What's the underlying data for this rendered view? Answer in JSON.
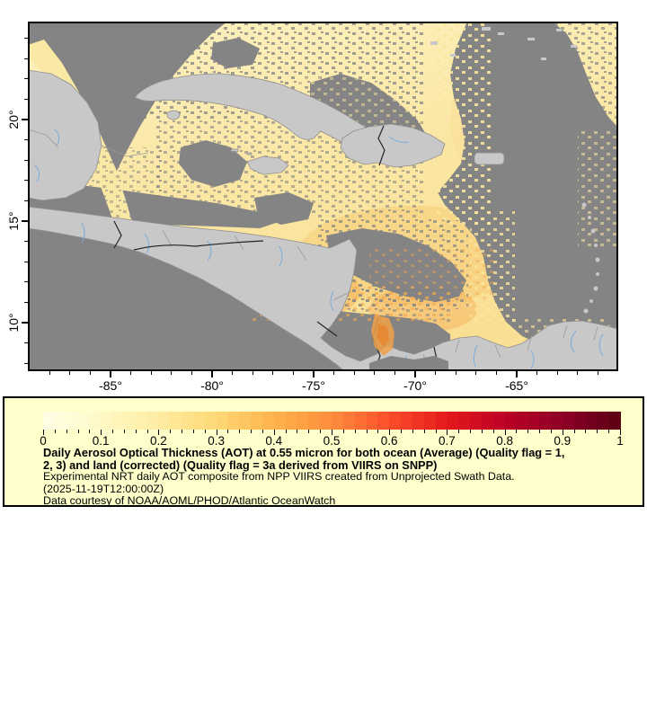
{
  "figure": {
    "kind": "geographic raster map with colorbar legend",
    "region": "Caribbean / Gulf of Mexico / Central America / northern South America"
  },
  "map": {
    "x_axis": {
      "tick_labels": [
        "-85°",
        "-80°",
        "-75°",
        "-70°",
        "-65°"
      ],
      "tick_values": [
        -85,
        -80,
        -75,
        -70,
        -65
      ],
      "minor_from": -88,
      "minor_to": -61,
      "approx_range_lon": [
        -89,
        -60
      ]
    },
    "y_axis": {
      "tick_labels": [
        "10°",
        "15°",
        "20°"
      ],
      "tick_values": [
        10,
        15,
        20
      ],
      "minor_from": 8,
      "minor_to": 24,
      "approx_range_lat": [
        7.6,
        24.8
      ]
    },
    "colors": {
      "no_data_gray": "#848484",
      "land_gray": "#c8c8c8",
      "aot_field_light": "#fcf0b8",
      "aot_field_mid": "#f9e093",
      "aot_patch_orange": "#f0a148",
      "river_blue": "#7aabdb",
      "admin_border_gray": "#9a9a9a",
      "country_border_dark": "#23232e",
      "frame_black": "#000000"
    }
  },
  "legend": {
    "background": "#ffffcc",
    "border_color": "#000000",
    "colorbar": {
      "min": 0,
      "max": 1,
      "blocks": 50,
      "anchor_colors": [
        "#FFFFE8",
        "#FFF9C6",
        "#FEECA2",
        "#FED976",
        "#FEB24C",
        "#FD8D3C",
        "#FC4E2A",
        "#E31A1C",
        "#BD0026",
        "#8E0026",
        "#5A0013"
      ],
      "tick_labels": [
        "0",
        "0.1",
        "0.2",
        "0.3",
        "0.4",
        "0.5",
        "0.6",
        "0.7",
        "0.8",
        "0.9",
        "1"
      ],
      "tick_values": [
        0,
        0.1,
        0.2,
        0.3,
        0.4,
        0.5,
        0.6,
        0.7,
        0.8,
        0.9,
        1
      ],
      "minor_step": 0.02
    },
    "caption": {
      "title_lines": [
        "Daily Aerosol Optical Thickness (AOT) at 0.55 micron for both ocean (Average) (Quality flag = 1,",
        "2, 3) and land (corrected) (Quality flag = 3a derived from VIIRS on SNPP)"
      ],
      "body_lines": [
        "Experimental NRT daily AOT composite from NPP VIIRS created from Unprojected Swath Data.",
        "(2025-11-19T12:00:00Z)",
        "Data courtesy of NOAA/AOML/PHOD/Atlantic OceanWatch"
      ]
    }
  }
}
